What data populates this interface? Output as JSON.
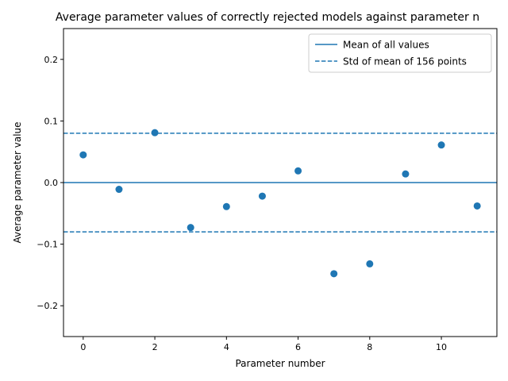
{
  "chart_data": {
    "type": "scatter",
    "title": "Average parameter values of correctly rejected models against parameter n",
    "xlabel": "Parameter number",
    "ylabel": "Average parameter value",
    "xlim": [
      -0.55,
      11.55
    ],
    "ylim": [
      -0.25,
      0.25
    ],
    "xticks": [
      0,
      2,
      4,
      6,
      8,
      10
    ],
    "yticks": [
      -0.2,
      -0.1,
      0.0,
      0.1,
      0.2
    ],
    "ytick_labels": [
      "−0.2",
      "−0.1",
      "0.0",
      "0.1",
      "0.2"
    ],
    "grid": false,
    "legend_position": "top-right",
    "point_color": "#1f77b4",
    "line_color": "#1f77b4",
    "series": [
      {
        "type": "scatter",
        "x": [
          0,
          1,
          2,
          3,
          4,
          5,
          6,
          7,
          8,
          9,
          10,
          11
        ],
        "y": [
          0.045,
          -0.011,
          0.081,
          -0.073,
          -0.039,
          -0.022,
          0.019,
          -0.148,
          -0.132,
          0.014,
          0.061,
          -0.038
        ]
      }
    ],
    "reference_lines": [
      {
        "name": "Mean of all values",
        "style": "solid",
        "y": 0.0
      },
      {
        "name": "Std of mean of 156 points",
        "style": "dashed",
        "y": [
          0.08,
          -0.08
        ]
      }
    ]
  }
}
